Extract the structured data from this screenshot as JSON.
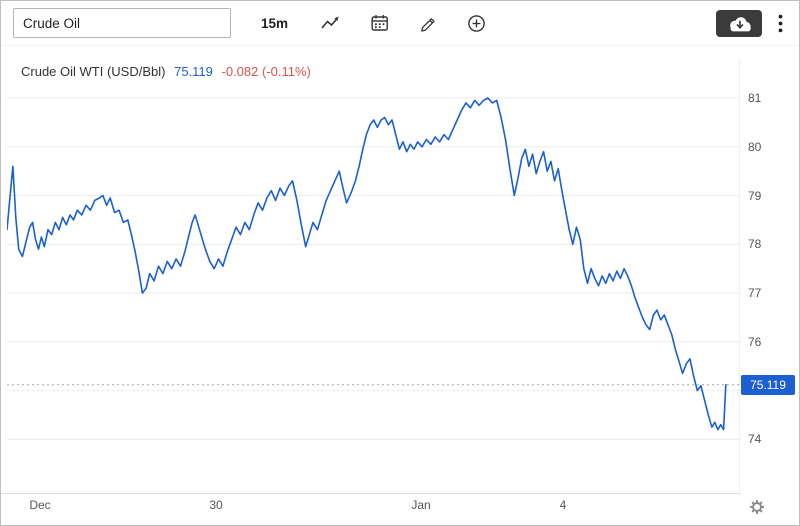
{
  "toolbar": {
    "symbol_value": "Crude Oil",
    "interval_label": "15m",
    "icon_names": [
      "chart-type-line",
      "calendar",
      "draw-pencil",
      "zoom-plus",
      "cloud-download",
      "more-menu-kebab",
      "settings-gear"
    ]
  },
  "header": {
    "instrument": "Crude Oil WTI (USD/Bbl)",
    "price": "75.119",
    "change": "-0.082 (-0.11%)"
  },
  "colors": {
    "line_blue": "#1b5fd0",
    "price_text_blue": "#1b5fd0",
    "negative_red": "#d9544d",
    "grid": "#ececec",
    "axis_text": "#555555",
    "dotted_last_price": "#95a5b8",
    "download_button_bg": "#3b3b3b",
    "toolbar_icon": "#333333"
  },
  "chart_data": {
    "type": "line",
    "title": "Crude Oil WTI (USD/Bbl)",
    "interval": "15m",
    "last_price": 75.119,
    "last_price_label": "75.119",
    "change": -0.082,
    "change_percent": -0.11,
    "ylim": [
      72.9,
      81.8
    ],
    "yticks_labeled": [
      81,
      80,
      79,
      78,
      77,
      76,
      74
    ],
    "gridlines": [
      81,
      80,
      79,
      78,
      77,
      76,
      75,
      74
    ],
    "xticks": [
      {
        "label": "Dec",
        "pos": 0.045
      },
      {
        "label": "30",
        "pos": 0.285
      },
      {
        "label": "Jan",
        "pos": 0.565
      },
      {
        "label": "4",
        "pos": 0.76
      }
    ],
    "grid": "horizontal",
    "legend": "none",
    "points": [
      [
        0.0,
        78.3
      ],
      [
        0.004,
        78.95
      ],
      [
        0.008,
        79.6
      ],
      [
        0.012,
        78.55
      ],
      [
        0.016,
        77.9
      ],
      [
        0.021,
        77.75
      ],
      [
        0.026,
        78.05
      ],
      [
        0.031,
        78.35
      ],
      [
        0.035,
        78.45
      ],
      [
        0.039,
        78.1
      ],
      [
        0.043,
        77.9
      ],
      [
        0.047,
        78.15
      ],
      [
        0.051,
        77.95
      ],
      [
        0.056,
        78.3
      ],
      [
        0.061,
        78.2
      ],
      [
        0.066,
        78.45
      ],
      [
        0.071,
        78.3
      ],
      [
        0.076,
        78.55
      ],
      [
        0.081,
        78.4
      ],
      [
        0.086,
        78.6
      ],
      [
        0.091,
        78.5
      ],
      [
        0.096,
        78.7
      ],
      [
        0.102,
        78.6
      ],
      [
        0.108,
        78.8
      ],
      [
        0.114,
        78.7
      ],
      [
        0.12,
        78.9
      ],
      [
        0.126,
        78.95
      ],
      [
        0.131,
        79.0
      ],
      [
        0.136,
        78.8
      ],
      [
        0.141,
        78.95
      ],
      [
        0.147,
        78.65
      ],
      [
        0.153,
        78.7
      ],
      [
        0.159,
        78.45
      ],
      [
        0.165,
        78.5
      ],
      [
        0.17,
        78.2
      ],
      [
        0.175,
        77.85
      ],
      [
        0.18,
        77.45
      ],
      [
        0.185,
        77.0
      ],
      [
        0.19,
        77.1
      ],
      [
        0.195,
        77.4
      ],
      [
        0.201,
        77.25
      ],
      [
        0.207,
        77.55
      ],
      [
        0.213,
        77.4
      ],
      [
        0.219,
        77.65
      ],
      [
        0.225,
        77.5
      ],
      [
        0.231,
        77.7
      ],
      [
        0.237,
        77.55
      ],
      [
        0.243,
        77.85
      ],
      [
        0.248,
        78.15
      ],
      [
        0.253,
        78.45
      ],
      [
        0.257,
        78.6
      ],
      [
        0.261,
        78.4
      ],
      [
        0.266,
        78.15
      ],
      [
        0.271,
        77.9
      ],
      [
        0.277,
        77.65
      ],
      [
        0.283,
        77.5
      ],
      [
        0.289,
        77.7
      ],
      [
        0.295,
        77.55
      ],
      [
        0.301,
        77.85
      ],
      [
        0.307,
        78.1
      ],
      [
        0.313,
        78.35
      ],
      [
        0.319,
        78.2
      ],
      [
        0.325,
        78.45
      ],
      [
        0.331,
        78.3
      ],
      [
        0.337,
        78.6
      ],
      [
        0.343,
        78.85
      ],
      [
        0.349,
        78.7
      ],
      [
        0.355,
        78.95
      ],
      [
        0.361,
        79.1
      ],
      [
        0.367,
        78.9
      ],
      [
        0.373,
        79.15
      ],
      [
        0.379,
        79.0
      ],
      [
        0.385,
        79.2
      ],
      [
        0.39,
        79.3
      ],
      [
        0.396,
        78.9
      ],
      [
        0.402,
        78.4
      ],
      [
        0.408,
        77.95
      ],
      [
        0.413,
        78.2
      ],
      [
        0.418,
        78.45
      ],
      [
        0.424,
        78.3
      ],
      [
        0.43,
        78.6
      ],
      [
        0.436,
        78.9
      ],
      [
        0.442,
        79.1
      ],
      [
        0.448,
        79.3
      ],
      [
        0.454,
        79.5
      ],
      [
        0.459,
        79.15
      ],
      [
        0.464,
        78.85
      ],
      [
        0.47,
        79.05
      ],
      [
        0.476,
        79.3
      ],
      [
        0.481,
        79.6
      ],
      [
        0.486,
        79.95
      ],
      [
        0.491,
        80.25
      ],
      [
        0.496,
        80.45
      ],
      [
        0.501,
        80.55
      ],
      [
        0.506,
        80.4
      ],
      [
        0.511,
        80.55
      ],
      [
        0.516,
        80.6
      ],
      [
        0.521,
        80.45
      ],
      [
        0.526,
        80.55
      ],
      [
        0.531,
        80.25
      ],
      [
        0.536,
        79.95
      ],
      [
        0.541,
        80.1
      ],
      [
        0.546,
        79.9
      ],
      [
        0.551,
        80.05
      ],
      [
        0.556,
        79.95
      ],
      [
        0.561,
        80.1
      ],
      [
        0.567,
        80.0
      ],
      [
        0.573,
        80.15
      ],
      [
        0.579,
        80.05
      ],
      [
        0.585,
        80.2
      ],
      [
        0.591,
        80.1
      ],
      [
        0.597,
        80.25
      ],
      [
        0.603,
        80.15
      ],
      [
        0.609,
        80.35
      ],
      [
        0.615,
        80.55
      ],
      [
        0.621,
        80.75
      ],
      [
        0.627,
        80.9
      ],
      [
        0.633,
        80.8
      ],
      [
        0.639,
        80.95
      ],
      [
        0.645,
        80.85
      ],
      [
        0.651,
        80.95
      ],
      [
        0.657,
        81.0
      ],
      [
        0.663,
        80.9
      ],
      [
        0.669,
        80.95
      ],
      [
        0.675,
        80.6
      ],
      [
        0.681,
        80.15
      ],
      [
        0.687,
        79.55
      ],
      [
        0.693,
        79.0
      ],
      [
        0.698,
        79.35
      ],
      [
        0.703,
        79.75
      ],
      [
        0.708,
        79.95
      ],
      [
        0.713,
        79.6
      ],
      [
        0.718,
        79.85
      ],
      [
        0.723,
        79.45
      ],
      [
        0.728,
        79.7
      ],
      [
        0.733,
        79.9
      ],
      [
        0.738,
        79.5
      ],
      [
        0.743,
        79.7
      ],
      [
        0.748,
        79.3
      ],
      [
        0.753,
        79.55
      ],
      [
        0.758,
        79.1
      ],
      [
        0.763,
        78.7
      ],
      [
        0.768,
        78.3
      ],
      [
        0.773,
        78.0
      ],
      [
        0.778,
        78.35
      ],
      [
        0.783,
        78.1
      ],
      [
        0.788,
        77.5
      ],
      [
        0.793,
        77.2
      ],
      [
        0.798,
        77.5
      ],
      [
        0.803,
        77.3
      ],
      [
        0.808,
        77.15
      ],
      [
        0.813,
        77.35
      ],
      [
        0.818,
        77.2
      ],
      [
        0.823,
        77.4
      ],
      [
        0.828,
        77.25
      ],
      [
        0.833,
        77.45
      ],
      [
        0.838,
        77.3
      ],
      [
        0.843,
        77.5
      ],
      [
        0.848,
        77.35
      ],
      [
        0.853,
        77.15
      ],
      [
        0.858,
        76.9
      ],
      [
        0.863,
        76.7
      ],
      [
        0.868,
        76.5
      ],
      [
        0.873,
        76.35
      ],
      [
        0.878,
        76.25
      ],
      [
        0.883,
        76.55
      ],
      [
        0.888,
        76.65
      ],
      [
        0.893,
        76.45
      ],
      [
        0.898,
        76.55
      ],
      [
        0.903,
        76.35
      ],
      [
        0.908,
        76.15
      ],
      [
        0.913,
        75.85
      ],
      [
        0.918,
        75.6
      ],
      [
        0.923,
        75.35
      ],
      [
        0.928,
        75.55
      ],
      [
        0.933,
        75.65
      ],
      [
        0.938,
        75.3
      ],
      [
        0.943,
        75.0
      ],
      [
        0.948,
        75.1
      ],
      [
        0.953,
        74.8
      ],
      [
        0.958,
        74.5
      ],
      [
        0.963,
        74.25
      ],
      [
        0.967,
        74.35
      ],
      [
        0.971,
        74.2
      ],
      [
        0.975,
        74.3
      ],
      [
        0.979,
        74.2
      ],
      [
        0.982,
        75.12
      ]
    ]
  }
}
